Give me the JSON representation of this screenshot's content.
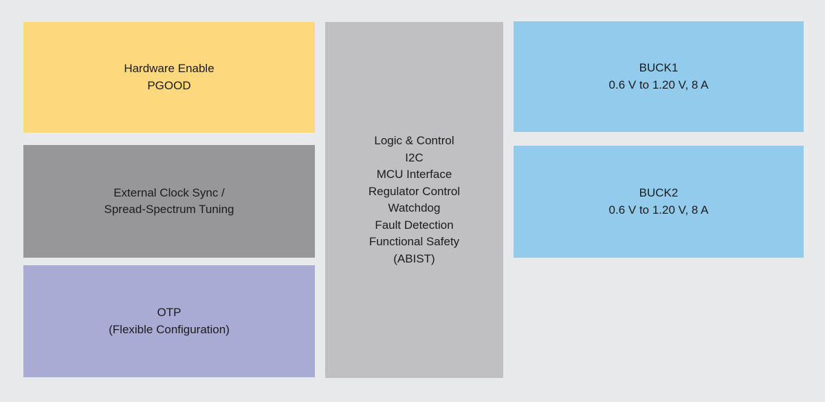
{
  "page": {
    "background_color": "#e8e9eb",
    "text_color": "#1b1b1b"
  },
  "blocks": {
    "hardware_enable": {
      "color": "#fdd87d",
      "lines": [
        "Hardware Enable",
        "PGOOD"
      ]
    },
    "external_clock": {
      "color": "#979799",
      "lines": [
        "External Clock Sync /",
        "Spread-Spectrum Tuning"
      ]
    },
    "otp": {
      "color": "#a9abd4",
      "lines": [
        "OTP",
        "(Flexible Configuration)"
      ]
    },
    "logic_control": {
      "color": "#c0c0c2",
      "lines": [
        "Logic & Control",
        "I2C",
        "MCU Interface",
        "Regulator Control",
        "Watchdog",
        "Fault Detection",
        "Functional Safety",
        "(ABIST)"
      ]
    },
    "buck1": {
      "color": "#93cbec",
      "lines": [
        "BUCK1",
        "0.6 V to 1.20 V, 8 A"
      ]
    },
    "buck2": {
      "color": "#93cbec",
      "lines": [
        "BUCK2",
        "0.6 V to 1.20 V, 8 A"
      ]
    }
  }
}
